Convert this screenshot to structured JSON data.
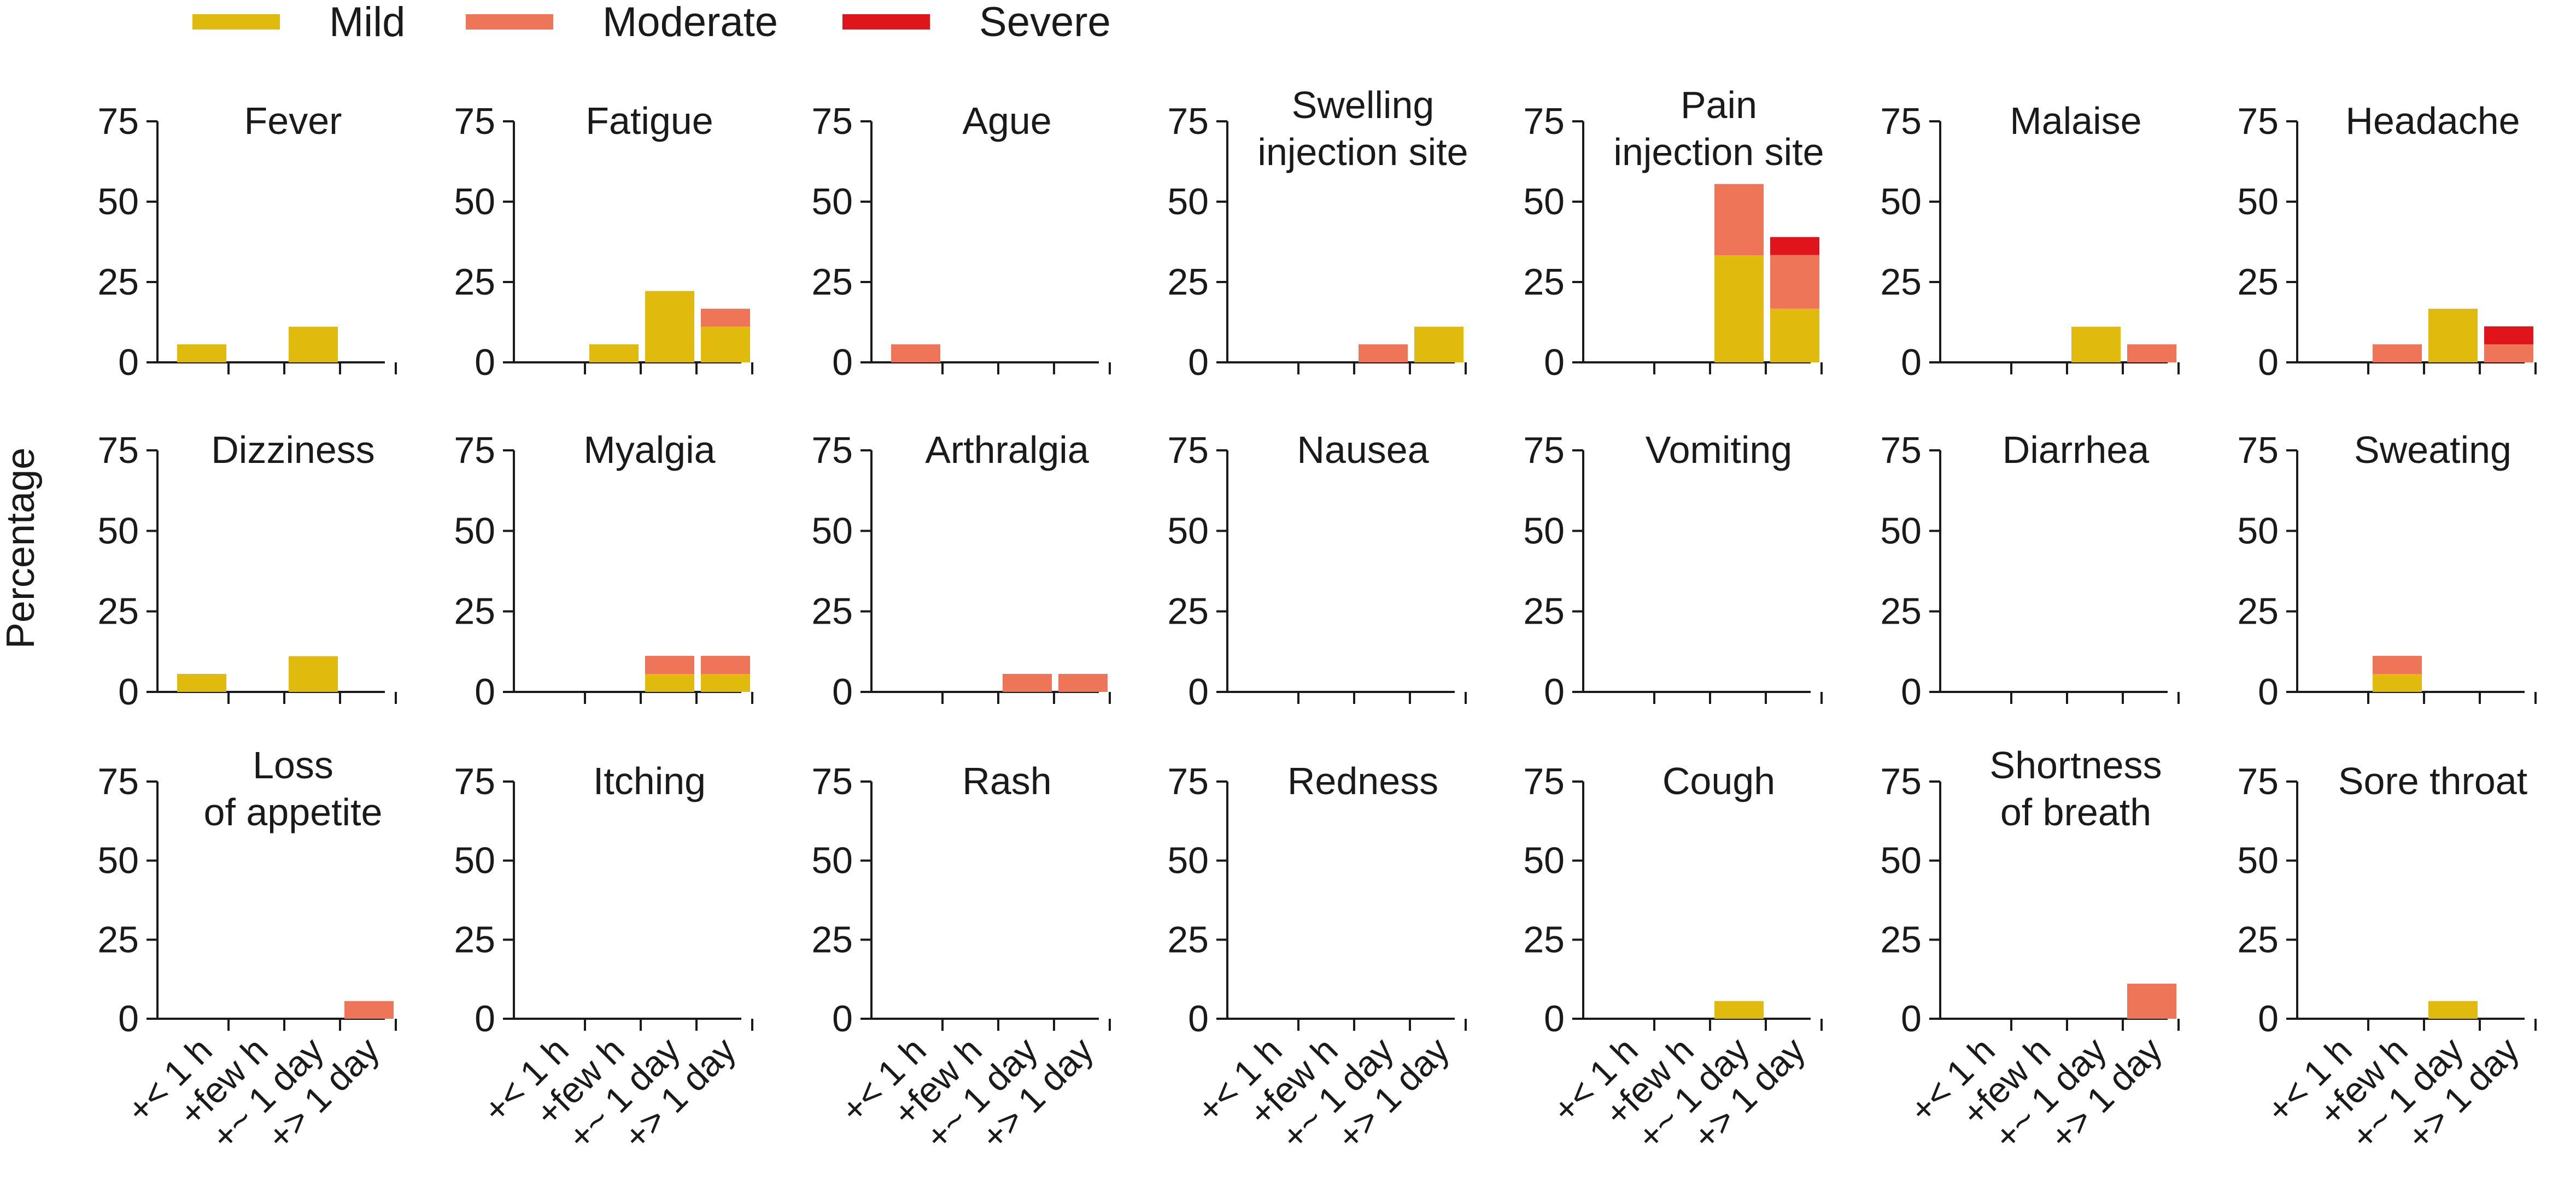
{
  "legend": [
    {
      "label": "Mild",
      "color": "#E0BB0E"
    },
    {
      "label": "Moderate",
      "color": "#EE7558"
    },
    {
      "label": "Severe",
      "color": "#E0151C"
    }
  ],
  "y_axis_label": "Percentage",
  "chart_data": {
    "type": "bar",
    "stacked": true,
    "ylabel": "Percentage",
    "ylim": [
      0,
      75
    ],
    "yticks": [
      0,
      25,
      50,
      75
    ],
    "categories": [
      "+< 1 h",
      "+few h",
      "+~ 1 day",
      "+> 1 day"
    ],
    "series_names": [
      "Mild",
      "Moderate",
      "Severe"
    ],
    "panels": [
      {
        "title": "Fever",
        "mild": [
          5.6,
          0,
          11.1,
          0
        ],
        "moderate": [
          0,
          0,
          0,
          0
        ],
        "severe": [
          0,
          0,
          0,
          0
        ]
      },
      {
        "title": "Fatigue",
        "mild": [
          0,
          5.6,
          22.2,
          11.1
        ],
        "moderate": [
          0,
          0,
          0,
          5.6
        ],
        "severe": [
          0,
          0,
          0,
          0
        ]
      },
      {
        "title": "Ague",
        "mild": [
          0,
          0,
          0,
          0
        ],
        "moderate": [
          5.6,
          0,
          0,
          0
        ],
        "severe": [
          0,
          0,
          0,
          0
        ]
      },
      {
        "title": "Swelling\ninjection site",
        "mild": [
          0,
          0,
          0,
          11.1
        ],
        "moderate": [
          0,
          0,
          5.6,
          0
        ],
        "severe": [
          0,
          0,
          0,
          0
        ]
      },
      {
        "title": "Pain\ninjection site",
        "mild": [
          0,
          0,
          33.3,
          16.7
        ],
        "moderate": [
          0,
          0,
          22.2,
          16.7
        ],
        "severe": [
          0,
          0,
          0,
          5.6
        ]
      },
      {
        "title": "Malaise",
        "mild": [
          0,
          0,
          11.1,
          0
        ],
        "moderate": [
          0,
          0,
          0,
          5.6
        ],
        "severe": [
          0,
          0,
          0,
          0
        ]
      },
      {
        "title": "Headache",
        "mild": [
          0,
          0,
          16.7,
          0
        ],
        "moderate": [
          0,
          5.6,
          0,
          5.6
        ],
        "severe": [
          0,
          0,
          0,
          5.6
        ]
      },
      {
        "title": "Dizziness",
        "mild": [
          5.6,
          0,
          11.1,
          0
        ],
        "moderate": [
          0,
          0,
          0,
          0
        ],
        "severe": [
          0,
          0,
          0,
          0
        ]
      },
      {
        "title": "Myalgia",
        "mild": [
          0,
          0,
          5.6,
          5.6
        ],
        "moderate": [
          0,
          0,
          5.6,
          5.6
        ],
        "severe": [
          0,
          0,
          0,
          0
        ]
      },
      {
        "title": "Arthralgia",
        "mild": [
          0,
          0,
          0,
          0
        ],
        "moderate": [
          0,
          0,
          5.6,
          5.6
        ],
        "severe": [
          0,
          0,
          0,
          0
        ]
      },
      {
        "title": "Nausea",
        "mild": [
          0,
          0,
          0,
          0
        ],
        "moderate": [
          0,
          0,
          0,
          0
        ],
        "severe": [
          0,
          0,
          0,
          0
        ]
      },
      {
        "title": "Vomiting",
        "mild": [
          0,
          0,
          0,
          0
        ],
        "moderate": [
          0,
          0,
          0,
          0
        ],
        "severe": [
          0,
          0,
          0,
          0
        ]
      },
      {
        "title": "Diarrhea",
        "mild": [
          0,
          0,
          0,
          0
        ],
        "moderate": [
          0,
          0,
          0,
          0
        ],
        "severe": [
          0,
          0,
          0,
          0
        ]
      },
      {
        "title": "Sweating",
        "mild": [
          0,
          5.6,
          0,
          0
        ],
        "moderate": [
          0,
          5.6,
          0,
          0
        ],
        "severe": [
          0,
          0,
          0,
          0
        ]
      },
      {
        "title": "Loss\nof appetite",
        "mild": [
          0,
          0,
          0,
          0
        ],
        "moderate": [
          0,
          0,
          0,
          5.6
        ],
        "severe": [
          0,
          0,
          0,
          0
        ]
      },
      {
        "title": "Itching",
        "mild": [
          0,
          0,
          0,
          0
        ],
        "moderate": [
          0,
          0,
          0,
          0
        ],
        "severe": [
          0,
          0,
          0,
          0
        ]
      },
      {
        "title": "Rash",
        "mild": [
          0,
          0,
          0,
          0
        ],
        "moderate": [
          0,
          0,
          0,
          0
        ],
        "severe": [
          0,
          0,
          0,
          0
        ]
      },
      {
        "title": "Redness",
        "mild": [
          0,
          0,
          0,
          0
        ],
        "moderate": [
          0,
          0,
          0,
          0
        ],
        "severe": [
          0,
          0,
          0,
          0
        ]
      },
      {
        "title": "Cough",
        "mild": [
          0,
          0,
          5.6,
          0
        ],
        "moderate": [
          0,
          0,
          0,
          0
        ],
        "severe": [
          0,
          0,
          0,
          0
        ]
      },
      {
        "title": "Shortness\nof breath",
        "mild": [
          0,
          0,
          0,
          0
        ],
        "moderate": [
          0,
          0,
          0,
          11.1
        ],
        "severe": [
          0,
          0,
          0,
          0
        ]
      },
      {
        "title": "Sore throat",
        "mild": [
          0,
          0,
          5.6,
          0
        ],
        "moderate": [
          0,
          0,
          0,
          0
        ],
        "severe": [
          0,
          0,
          0,
          0
        ]
      }
    ]
  }
}
